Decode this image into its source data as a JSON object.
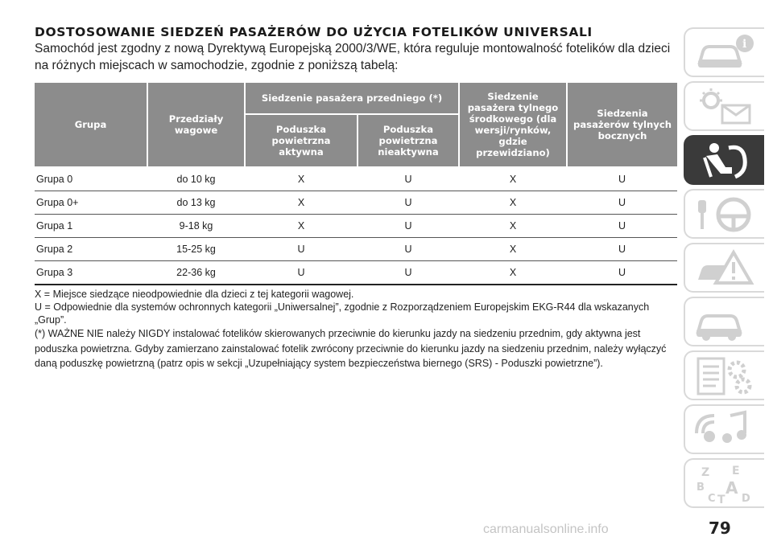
{
  "title": "DOSTOSOWANIE SIEDZEŃ PASAŻERÓW DO UŻYCIA FOTELIKÓW UNIVERSALI",
  "intro": "Samochód jest zgodny z nową Dyrektywą Europejską 2000/3/WE, która reguluje montowalność fotelików dla dzieci na różnych miejscach w samochodzie, zgodnie z poniższą tabelą:",
  "table": {
    "headers": {
      "group": "Grupa",
      "weight": "Przedziały wagowe",
      "front": "Siedzenie pasażera przedniego (*)",
      "airbag_on": "Poduszka powietrzna aktywna",
      "airbag_off": "Poduszka powietrzna nieaktywna",
      "rear_center": "Siedzenie pasażera tylnego środkowego (dla wersji/rynków, gdzie przewidziano)",
      "rear_side": "Siedzenia pasażerów tylnych bocznych"
    },
    "rows": [
      {
        "group": "Grupa 0",
        "weight": "do 10 kg",
        "airbag_on": "X",
        "airbag_off": "U",
        "rear_center": "X",
        "rear_side": "U"
      },
      {
        "group": "Grupa 0+",
        "weight": "do 13 kg",
        "airbag_on": "X",
        "airbag_off": "U",
        "rear_center": "X",
        "rear_side": "U"
      },
      {
        "group": "Grupa 1",
        "weight": "9-18 kg",
        "airbag_on": "X",
        "airbag_off": "U",
        "rear_center": "X",
        "rear_side": "U"
      },
      {
        "group": "Grupa 2",
        "weight": "15-25 kg",
        "airbag_on": "U",
        "airbag_off": "U",
        "rear_center": "X",
        "rear_side": "U"
      },
      {
        "group": "Grupa 3",
        "weight": "22-36 kg",
        "airbag_on": "U",
        "airbag_off": "U",
        "rear_center": "X",
        "rear_side": "U"
      }
    ]
  },
  "notes": {
    "x": "X = Miejsce siedzące nieodpowiednie dla dzieci z tej kategorii wagowej.",
    "u": "U = Odpowiednie dla systemów ochronnych kategorii „Uniwersalnej”, zgodnie z Rozporządzeniem Europejskim EKG-R44 dla wskazanych „Grup”.",
    "warning": "(*) WAŻNE NIE należy NIGDY instalować fotelików skierowanych przeciwnie do kierunku jazdy na siedzeniu przednim, gdy aktywna jest poduszka powietrzna. Gdyby zamierzano zainstalować fotelik zwrócony przeciwnie do kierunku jazdy na siedzeniu przednim, należy wyłączyć daną poduszkę powietrzną (patrz opis w sekcji „Uzupełniający system bezpieczeństwa biernego (SRS) - Poduszki powietrzne”)."
  },
  "sidebar": {
    "tabs": [
      {
        "icon": "car-info-icon"
      },
      {
        "icon": "dashboard-lights-icon"
      },
      {
        "icon": "seat-safety-icon",
        "active": true
      },
      {
        "icon": "key-steering-wheel-icon"
      },
      {
        "icon": "car-warning-icon"
      },
      {
        "icon": "car-service-icon"
      },
      {
        "icon": "specs-gears-icon"
      },
      {
        "icon": "multimedia-icon"
      },
      {
        "icon": "alphabet-index-icon"
      }
    ],
    "index_letters": [
      "Z",
      "E",
      "B",
      "A",
      "C",
      "T",
      "D"
    ]
  },
  "page_number": "79",
  "watermark": "carmanualsonline.info",
  "colors": {
    "header_bg": "#8c8c8c",
    "active_tab": "#3a3a3a",
    "tab_border": "#d9d9d9"
  }
}
